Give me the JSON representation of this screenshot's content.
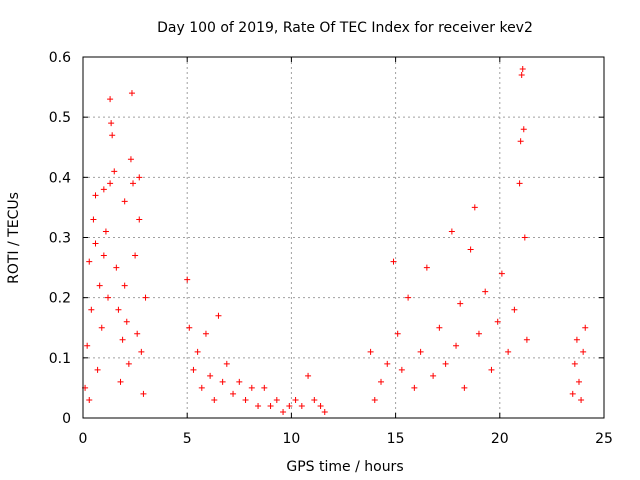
{
  "chart_data": {
    "type": "scatter",
    "title": "Day 100 of 2019, Rate Of TEC Index for receiver kev2",
    "xlabel": "GPS time / hours",
    "ylabel": "ROTI / TECUs",
    "xlim": [
      0,
      25
    ],
    "ylim": [
      0,
      0.6
    ],
    "xticks": [
      "0",
      "5",
      "10",
      "15",
      "20",
      "25"
    ],
    "yticks": [
      "0",
      "0.1",
      "0.2",
      "0.3",
      "0.4",
      "0.5",
      "0.6"
    ],
    "grid": true,
    "marker": "+",
    "marker_color": "#ff0000",
    "grid_color": "#a0a0a0",
    "series": [
      {
        "name": "ROTI",
        "points": [
          [
            0.1,
            0.05
          ],
          [
            0.2,
            0.12
          ],
          [
            0.3,
            0.03
          ],
          [
            0.4,
            0.18
          ],
          [
            0.5,
            0.33
          ],
          [
            0.6,
            0.29
          ],
          [
            0.7,
            0.08
          ],
          [
            0.8,
            0.22
          ],
          [
            0.9,
            0.15
          ],
          [
            1.0,
            0.27
          ],
          [
            1.1,
            0.31
          ],
          [
            1.2,
            0.2
          ],
          [
            1.3,
            0.53
          ],
          [
            1.35,
            0.49
          ],
          [
            1.4,
            0.47
          ],
          [
            1.5,
            0.41
          ],
          [
            1.6,
            0.25
          ],
          [
            1.7,
            0.18
          ],
          [
            1.8,
            0.06
          ],
          [
            1.9,
            0.13
          ],
          [
            2.0,
            0.22
          ],
          [
            2.1,
            0.16
          ],
          [
            2.2,
            0.09
          ],
          [
            2.3,
            0.43
          ],
          [
            2.35,
            0.54
          ],
          [
            2.4,
            0.39
          ],
          [
            2.5,
            0.27
          ],
          [
            2.6,
            0.14
          ],
          [
            2.7,
            0.33
          ],
          [
            2.8,
            0.11
          ],
          [
            2.9,
            0.04
          ],
          [
            3.0,
            0.2
          ],
          [
            0.6,
            0.37
          ],
          [
            1.0,
            0.38
          ],
          [
            1.3,
            0.39
          ],
          [
            2.0,
            0.36
          ],
          [
            2.7,
            0.4
          ],
          [
            0.3,
            0.26
          ],
          [
            5.0,
            0.23
          ],
          [
            5.1,
            0.15
          ],
          [
            5.3,
            0.08
          ],
          [
            5.5,
            0.11
          ],
          [
            5.7,
            0.05
          ],
          [
            5.9,
            0.14
          ],
          [
            6.1,
            0.07
          ],
          [
            6.3,
            0.03
          ],
          [
            6.5,
            0.17
          ],
          [
            6.7,
            0.06
          ],
          [
            6.9,
            0.09
          ],
          [
            7.2,
            0.04
          ],
          [
            7.5,
            0.06
          ],
          [
            7.8,
            0.03
          ],
          [
            8.1,
            0.05
          ],
          [
            8.4,
            0.02
          ],
          [
            8.7,
            0.05
          ],
          [
            9.0,
            0.02
          ],
          [
            9.3,
            0.03
          ],
          [
            9.6,
            0.01
          ],
          [
            9.9,
            0.02
          ],
          [
            10.2,
            0.03
          ],
          [
            10.5,
            0.02
          ],
          [
            10.8,
            0.07
          ],
          [
            11.1,
            0.03
          ],
          [
            11.4,
            0.02
          ],
          [
            11.6,
            0.01
          ],
          [
            13.8,
            0.11
          ],
          [
            14.0,
            0.03
          ],
          [
            14.3,
            0.06
          ],
          [
            14.6,
            0.09
          ],
          [
            14.9,
            0.26
          ],
          [
            15.1,
            0.14
          ],
          [
            15.3,
            0.08
          ],
          [
            15.6,
            0.2
          ],
          [
            15.9,
            0.05
          ],
          [
            16.2,
            0.11
          ],
          [
            16.5,
            0.25
          ],
          [
            16.8,
            0.07
          ],
          [
            17.1,
            0.15
          ],
          [
            17.4,
            0.09
          ],
          [
            17.7,
            0.31
          ],
          [
            17.9,
            0.12
          ],
          [
            18.1,
            0.19
          ],
          [
            18.3,
            0.05
          ],
          [
            18.6,
            0.28
          ],
          [
            18.8,
            0.35
          ],
          [
            19.0,
            0.14
          ],
          [
            19.3,
            0.21
          ],
          [
            19.6,
            0.08
          ],
          [
            19.9,
            0.16
          ],
          [
            20.1,
            0.24
          ],
          [
            20.4,
            0.11
          ],
          [
            20.7,
            0.18
          ],
          [
            21.0,
            0.46
          ],
          [
            21.05,
            0.57
          ],
          [
            21.1,
            0.58
          ],
          [
            21.15,
            0.48
          ],
          [
            21.2,
            0.3
          ],
          [
            20.95,
            0.39
          ],
          [
            21.3,
            0.13
          ],
          [
            23.5,
            0.04
          ],
          [
            23.6,
            0.09
          ],
          [
            23.7,
            0.13
          ],
          [
            23.8,
            0.06
          ],
          [
            23.9,
            0.03
          ],
          [
            24.0,
            0.11
          ],
          [
            24.1,
            0.15
          ]
        ]
      }
    ]
  }
}
